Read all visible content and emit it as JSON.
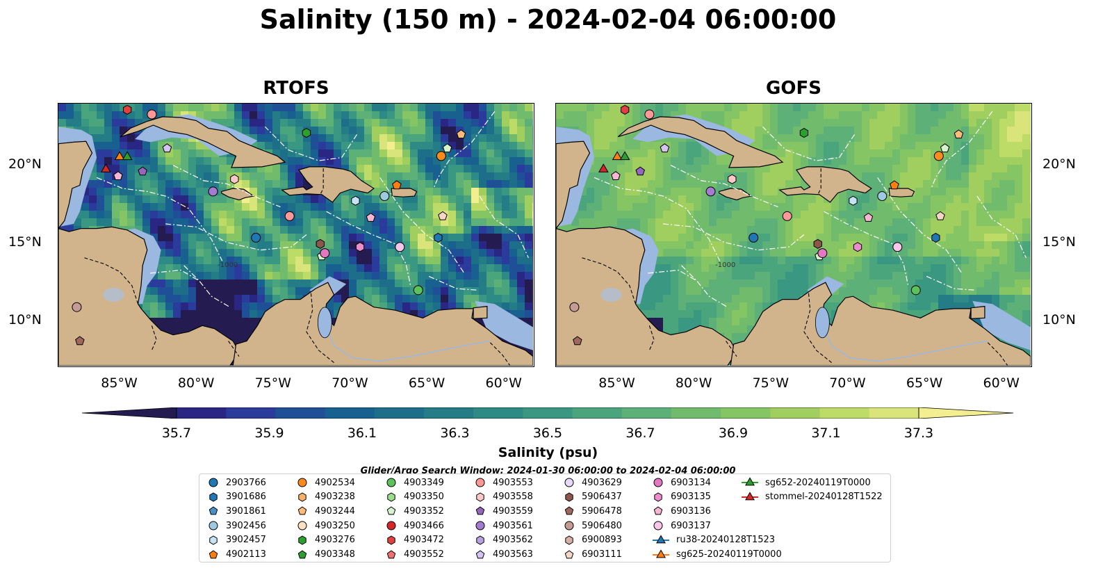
{
  "title": "Salinity (150 m) - 2024-02-04 06:00:00",
  "panels": [
    {
      "title": "RTOFS",
      "model": "rtofs"
    },
    {
      "title": "GOFS",
      "model": "gofs"
    }
  ],
  "map": {
    "lon_range": [
      -89,
      -58
    ],
    "lat_range": [
      7,
      24
    ],
    "lon_ticks": [
      "85°W",
      "80°W",
      "75°W",
      "70°W",
      "65°W",
      "60°W"
    ],
    "lon_tick_values": [
      -85,
      -80,
      -75,
      -70,
      -65,
      -60
    ],
    "lat_ticks": [
      "20°N",
      "15°N",
      "10°N"
    ],
    "lat_tick_values": [
      20,
      15,
      10
    ],
    "land_color": "#d2b48c",
    "shelf_color": "#9bb8e0",
    "eez_line_color": "#ffffff",
    "border_color": "#000000",
    "isobath_labels": [
      "-1000"
    ]
  },
  "colorbar": {
    "label": "Salinity (psu)",
    "ticks": [
      "35.7",
      "35.9",
      "36.1",
      "36.3",
      "36.5",
      "36.7",
      "36.9",
      "37.1",
      "37.3"
    ],
    "tick_values": [
      35.7,
      35.9,
      36.1,
      36.3,
      36.5,
      36.7,
      36.9,
      37.1,
      37.3
    ],
    "min": 35.6,
    "max": 37.4,
    "extend": "both",
    "colormap": [
      "#241c50",
      "#2a2784",
      "#2b3b9b",
      "#1f4f96",
      "#18608f",
      "#1c6e89",
      "#247c86",
      "#2e8a84",
      "#3a9882",
      "#4aa57d",
      "#5db077",
      "#71bb6d",
      "#86c564",
      "#a0cf5f",
      "#bddb67",
      "#d9e57a",
      "#f3ee8f"
    ]
  },
  "search_window": "Glider/Argo Search Window: 2024-01-30 06:00:00 to 2024-02-04 06:00:00",
  "legend": [
    {
      "label": "2903766",
      "marker": "circle",
      "color": "#1f77b4"
    },
    {
      "label": "3901686",
      "marker": "hexagon",
      "color": "#1f77b4"
    },
    {
      "label": "3901861",
      "marker": "pentagon",
      "color": "#4a90c8"
    },
    {
      "label": "3902456",
      "marker": "circle",
      "color": "#9ecae1"
    },
    {
      "label": "3902457",
      "marker": "hexagon",
      "color": "#c6e2f5"
    },
    {
      "label": "4902113",
      "marker": "pentagon",
      "color": "#ff7f0e"
    },
    {
      "label": "4902534",
      "marker": "circle",
      "color": "#ff8c1a"
    },
    {
      "label": "4903238",
      "marker": "hexagon",
      "color": "#f5b266"
    },
    {
      "label": "4903244",
      "marker": "pentagon",
      "color": "#ffbb78"
    },
    {
      "label": "4903250",
      "marker": "circle",
      "color": "#ffe0c0"
    },
    {
      "label": "4903276",
      "marker": "hexagon",
      "color": "#2ca02c"
    },
    {
      "label": "4903348",
      "marker": "pentagon",
      "color": "#2ca02c"
    },
    {
      "label": "4903349",
      "marker": "circle",
      "color": "#5cc25c"
    },
    {
      "label": "4903350",
      "marker": "hexagon",
      "color": "#98df8a"
    },
    {
      "label": "4903352",
      "marker": "pentagon",
      "color": "#d4f5cc"
    },
    {
      "label": "4903466",
      "marker": "circle",
      "color": "#d62728"
    },
    {
      "label": "4903472",
      "marker": "hexagon",
      "color": "#e04040"
    },
    {
      "label": "4903552",
      "marker": "pentagon",
      "color": "#f07070"
    },
    {
      "label": "4903553",
      "marker": "circle",
      "color": "#ff9896"
    },
    {
      "label": "4903558",
      "marker": "hexagon",
      "color": "#ffc8c8"
    },
    {
      "label": "4903559",
      "marker": "pentagon",
      "color": "#9467bd"
    },
    {
      "label": "4903561",
      "marker": "circle",
      "color": "#a57bd0"
    },
    {
      "label": "4903562",
      "marker": "hexagon",
      "color": "#b9a0e0"
    },
    {
      "label": "4903563",
      "marker": "pentagon",
      "color": "#d5c4f0"
    },
    {
      "label": "4903629",
      "marker": "circle",
      "color": "#e8dbfa"
    },
    {
      "label": "5906437",
      "marker": "hexagon",
      "color": "#8c564b"
    },
    {
      "label": "5906478",
      "marker": "pentagon",
      "color": "#a0685c"
    },
    {
      "label": "5906480",
      "marker": "circle",
      "color": "#c49c94"
    },
    {
      "label": "6900893",
      "marker": "hexagon",
      "color": "#d9b0a6"
    },
    {
      "label": "6903111",
      "marker": "pentagon",
      "color": "#f7d6c8"
    },
    {
      "label": "6903134",
      "marker": "circle",
      "color": "#e377c2"
    },
    {
      "label": "6903135",
      "marker": "hexagon",
      "color": "#ec8ccd"
    },
    {
      "label": "6903136",
      "marker": "pentagon",
      "color": "#f7b6d2"
    },
    {
      "label": "6903137",
      "marker": "circle",
      "color": "#f7c6e8"
    },
    {
      "label": "ru38-20240128T1523",
      "marker": "triangle-line",
      "color": "#1f77b4"
    },
    {
      "label": "sg625-20240119T0000",
      "marker": "triangle-line",
      "color": "#ff7f0e"
    },
    {
      "label": "sg652-20240119T0000",
      "marker": "triangle-line",
      "color": "#2ca02c"
    },
    {
      "label": "stommel-20240128T1522",
      "marker": "triangle-line",
      "color": "#d62728"
    }
  ],
  "platform_positions": [
    {
      "id": "2903766",
      "lon": -76.1,
      "lat": 15.3
    },
    {
      "id": "3901686",
      "lon": -64.2,
      "lat": 15.3
    },
    {
      "id": "3902456",
      "lon": -67.7,
      "lat": 18.0
    },
    {
      "id": "3902457",
      "lon": -69.6,
      "lat": 17.7
    },
    {
      "id": "4902113",
      "lon": -66.9,
      "lat": 18.7
    },
    {
      "id": "4902534",
      "lon": -64.0,
      "lat": 20.6
    },
    {
      "id": "4903244",
      "lon": -62.7,
      "lat": 22.0
    },
    {
      "id": "4903276",
      "lon": -72.8,
      "lat": 22.1
    },
    {
      "id": "4903349",
      "lon": -65.5,
      "lat": 11.9
    },
    {
      "id": "4903352",
      "lon": -63.6,
      "lat": 21.1
    },
    {
      "id": "4903352",
      "lon": -71.8,
      "lat": 14.1
    },
    {
      "id": "4903472",
      "lon": -84.5,
      "lat": 23.6
    },
    {
      "id": "4903553",
      "lon": -73.9,
      "lat": 16.7
    },
    {
      "id": "4903553",
      "lon": -82.9,
      "lat": 23.3
    },
    {
      "id": "4903558",
      "lon": -77.5,
      "lat": 19.1
    },
    {
      "id": "4903559",
      "lon": -83.5,
      "lat": 19.6
    },
    {
      "id": "4903561",
      "lon": -78.9,
      "lat": 18.3
    },
    {
      "id": "4903563",
      "lon": -81.9,
      "lat": 21.1
    },
    {
      "id": "5906437",
      "lon": -71.9,
      "lat": 14.9
    },
    {
      "id": "5906478",
      "lon": -87.6,
      "lat": 8.6
    },
    {
      "id": "5906480",
      "lon": -87.8,
      "lat": 10.8
    },
    {
      "id": "6903111",
      "lon": -63.9,
      "lat": 16.7
    },
    {
      "id": "6903134",
      "lon": -71.6,
      "lat": 14.3
    },
    {
      "id": "6903135",
      "lon": -69.3,
      "lat": 14.7
    },
    {
      "id": "6903136",
      "lon": -68.6,
      "lat": 16.6
    },
    {
      "id": "6903137",
      "lon": -66.7,
      "lat": 14.7
    },
    {
      "id": "6903136",
      "lon": -85.1,
      "lat": 19.3
    }
  ],
  "glider_positions": [
    {
      "id": "sg625-20240119T0000",
      "lon": -85.0,
      "lat": 20.6
    },
    {
      "id": "sg652-20240119T0000",
      "lon": -84.5,
      "lat": 20.6
    },
    {
      "id": "stommel-20240128T1522",
      "lon": -85.9,
      "lat": 19.8
    }
  ]
}
